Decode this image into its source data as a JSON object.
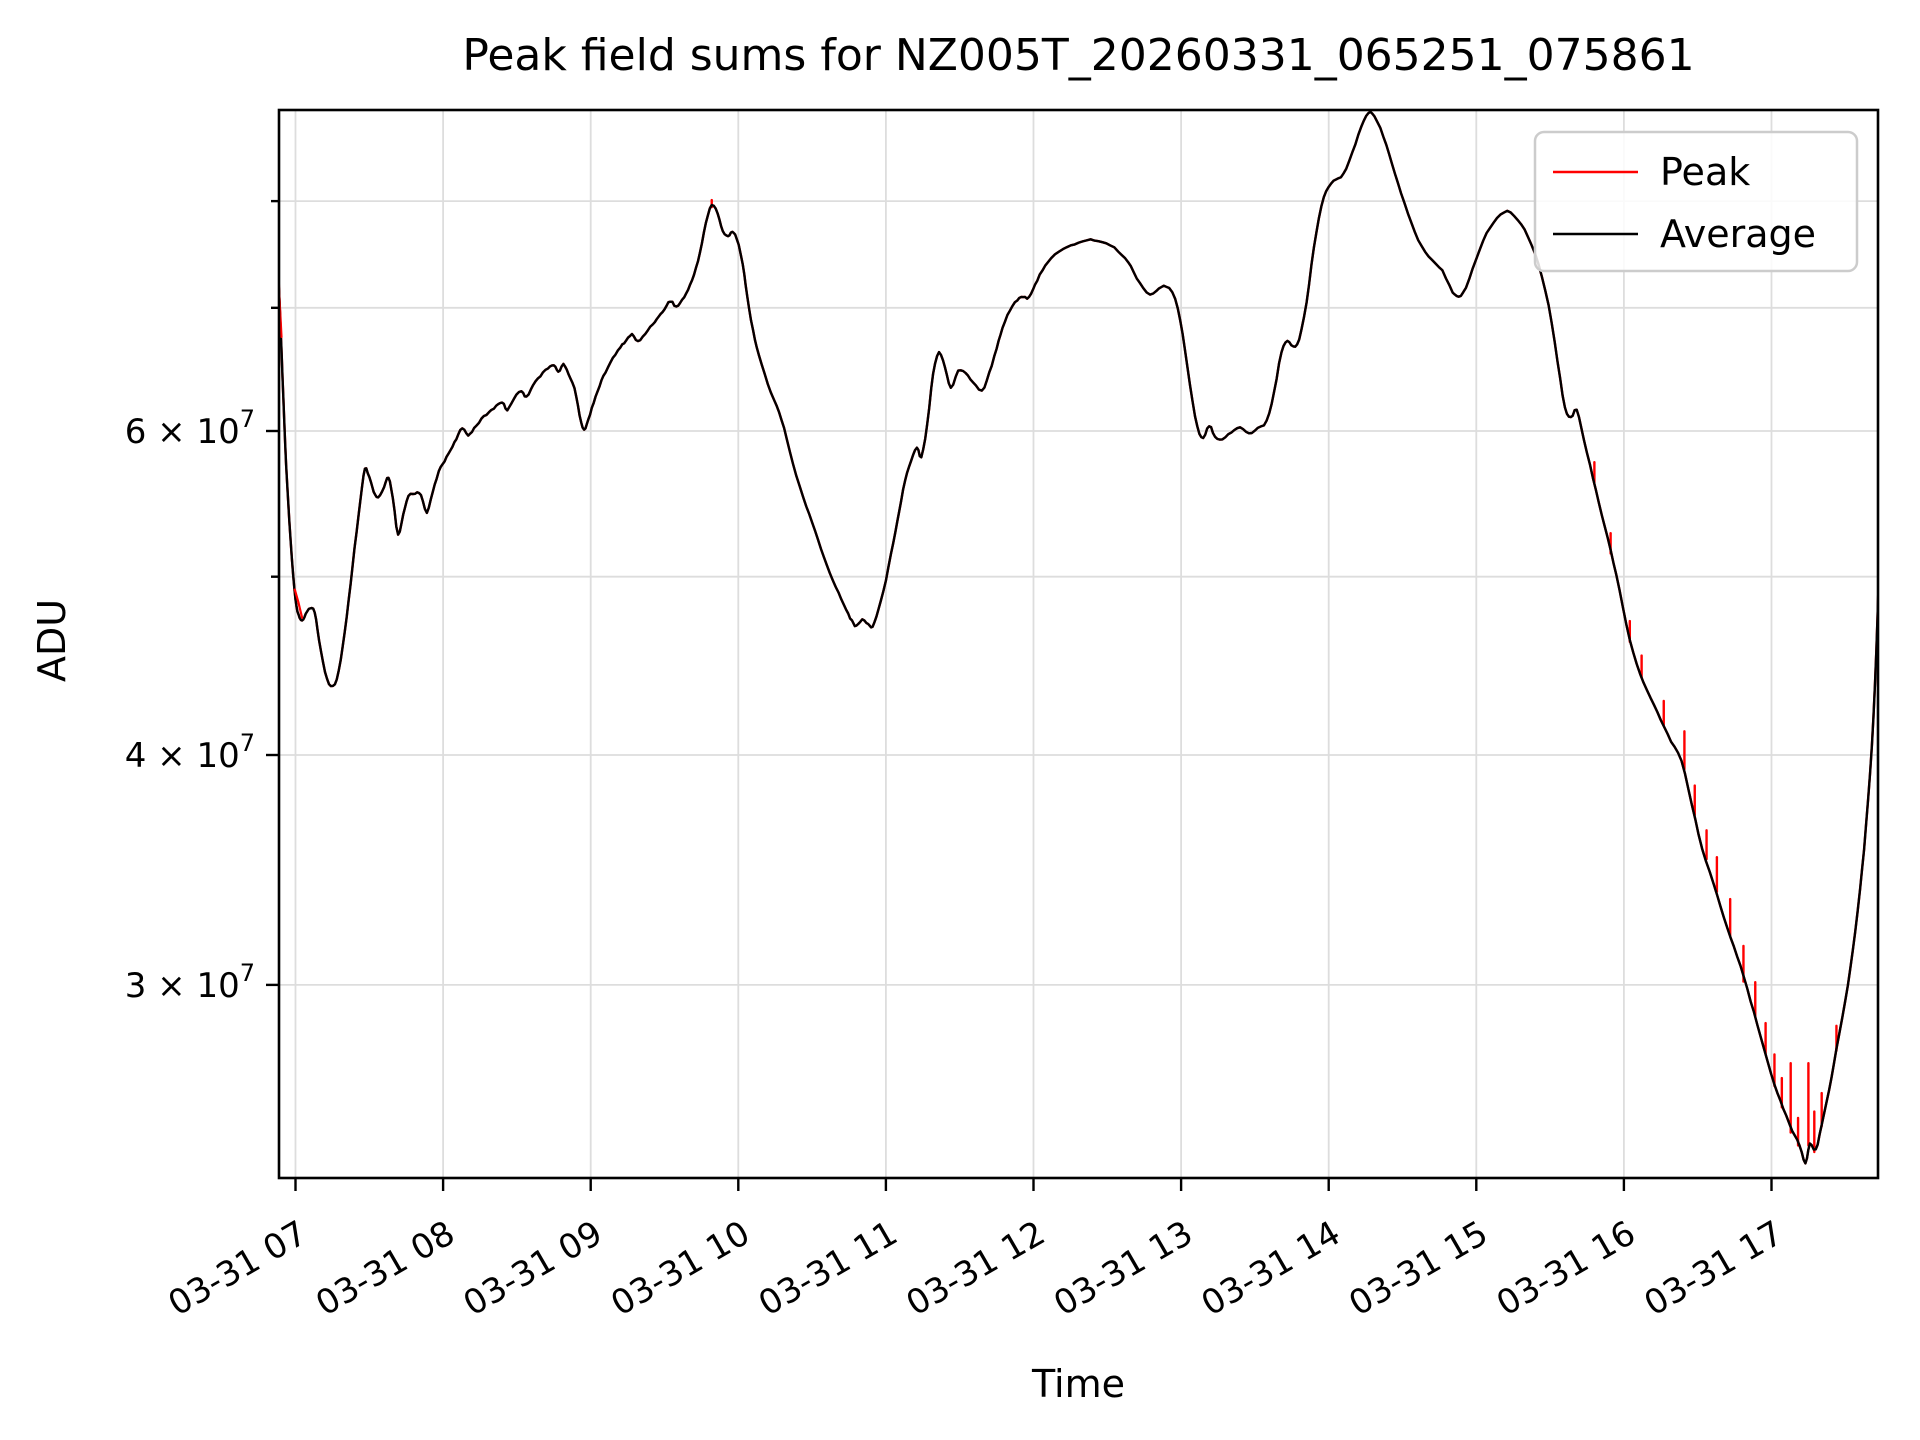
{
  "chart_data": {
    "type": "line",
    "title": "Peak field sums for NZ005T_20260331_065251_075861",
    "xlabel": "Time",
    "ylabel": "ADU",
    "y_scale": "log",
    "ylim_e7": [
      2.33,
      8.98
    ],
    "xlim_hours": [
      6.878,
      17.76
    ],
    "grid": true,
    "legend_position": "upper right",
    "background_color": "#ffffff",
    "grid_color": "#dddddd",
    "spine_color": "#000000",
    "x_ticks": [
      {
        "hour": 7,
        "label": "03-31 07"
      },
      {
        "hour": 8,
        "label": "03-31 08"
      },
      {
        "hour": 9,
        "label": "03-31 09"
      },
      {
        "hour": 10,
        "label": "03-31 10"
      },
      {
        "hour": 11,
        "label": "03-31 11"
      },
      {
        "hour": 12,
        "label": "03-31 12"
      },
      {
        "hour": 13,
        "label": "03-31 13"
      },
      {
        "hour": 14,
        "label": "03-31 14"
      },
      {
        "hour": 15,
        "label": "03-31 15"
      },
      {
        "hour": 16,
        "label": "03-31 16"
      },
      {
        "hour": 17,
        "label": "03-31 17"
      }
    ],
    "y_ticks_major": [
      {
        "value_e7": 6,
        "base": "6 × 10",
        "exp": "7"
      },
      {
        "value_e7": 4,
        "base": "4 × 10",
        "exp": "7"
      },
      {
        "value_e7": 3,
        "base": "3 × 10",
        "exp": "7"
      }
    ],
    "y_ticks_minor_e7": [
      8,
      7,
      5
    ],
    "series": [
      {
        "name": "Peak",
        "color": "#ff0000"
      },
      {
        "name": "Average",
        "color": "#000000"
      }
    ],
    "average_points_t_v_e7": [
      [
        6.878,
        7.43
      ],
      [
        6.895,
        6.95
      ],
      [
        6.912,
        6.42
      ],
      [
        6.93,
        5.9
      ],
      [
        6.95,
        5.5
      ],
      [
        6.975,
        5.12
      ],
      [
        7.0,
        4.86
      ],
      [
        7.02,
        4.77
      ],
      [
        7.045,
        4.73
      ],
      [
        7.07,
        4.77
      ],
      [
        7.1,
        4.81
      ],
      [
        7.13,
        4.78
      ],
      [
        7.16,
        4.62
      ],
      [
        7.2,
        4.44
      ],
      [
        7.24,
        4.36
      ],
      [
        7.28,
        4.4
      ],
      [
        7.32,
        4.58
      ],
      [
        7.36,
        4.85
      ],
      [
        7.4,
        5.18
      ],
      [
        7.44,
        5.5
      ],
      [
        7.47,
        5.72
      ],
      [
        7.5,
        5.66
      ],
      [
        7.53,
        5.56
      ],
      [
        7.56,
        5.52
      ],
      [
        7.6,
        5.59
      ],
      [
        7.63,
        5.66
      ],
      [
        7.66,
        5.51
      ],
      [
        7.695,
        5.27
      ],
      [
        7.73,
        5.4
      ],
      [
        7.765,
        5.53
      ],
      [
        7.81,
        5.55
      ],
      [
        7.85,
        5.54
      ],
      [
        7.89,
        5.42
      ],
      [
        7.93,
        5.56
      ],
      [
        7.97,
        5.7
      ],
      [
        8.01,
        5.78
      ],
      [
        8.05,
        5.86
      ],
      [
        8.09,
        5.94
      ],
      [
        8.13,
        6.02
      ],
      [
        8.17,
        5.97
      ],
      [
        8.21,
        6.02
      ],
      [
        8.26,
        6.09
      ],
      [
        8.31,
        6.14
      ],
      [
        8.36,
        6.19
      ],
      [
        8.4,
        6.22
      ],
      [
        8.435,
        6.16
      ],
      [
        8.48,
        6.25
      ],
      [
        8.53,
        6.31
      ],
      [
        8.565,
        6.26
      ],
      [
        8.61,
        6.36
      ],
      [
        8.66,
        6.43
      ],
      [
        8.71,
        6.49
      ],
      [
        8.75,
        6.52
      ],
      [
        8.78,
        6.46
      ],
      [
        8.815,
        6.52
      ],
      [
        8.85,
        6.44
      ],
      [
        8.89,
        6.33
      ],
      [
        8.925,
        6.12
      ],
      [
        8.955,
        6.01
      ],
      [
        8.985,
        6.09
      ],
      [
        9.02,
        6.22
      ],
      [
        9.06,
        6.35
      ],
      [
        9.1,
        6.46
      ],
      [
        9.15,
        6.57
      ],
      [
        9.2,
        6.66
      ],
      [
        9.24,
        6.72
      ],
      [
        9.28,
        6.77
      ],
      [
        9.32,
        6.71
      ],
      [
        9.37,
        6.78
      ],
      [
        9.42,
        6.86
      ],
      [
        9.46,
        6.92
      ],
      [
        9.5,
        6.99
      ],
      [
        9.54,
        7.06
      ],
      [
        9.58,
        7.01
      ],
      [
        9.62,
        7.07
      ],
      [
        9.66,
        7.16
      ],
      [
        9.7,
        7.3
      ],
      [
        9.74,
        7.5
      ],
      [
        9.78,
        7.78
      ],
      [
        9.82,
        7.96
      ],
      [
        9.86,
        7.88
      ],
      [
        9.895,
        7.7
      ],
      [
        9.93,
        7.66
      ],
      [
        9.96,
        7.7
      ],
      [
        9.99,
        7.63
      ],
      [
        10.03,
        7.4
      ],
      [
        10.06,
        7.1
      ],
      [
        10.1,
        6.8
      ],
      [
        10.14,
        6.6
      ],
      [
        10.2,
        6.36
      ],
      [
        10.26,
        6.19
      ],
      [
        10.31,
        6.02
      ],
      [
        10.37,
        5.76
      ],
      [
        10.44,
        5.52
      ],
      [
        10.5,
        5.35
      ],
      [
        10.56,
        5.18
      ],
      [
        10.62,
        5.02
      ],
      [
        10.68,
        4.9
      ],
      [
        10.73,
        4.8
      ],
      [
        10.77,
        4.73
      ],
      [
        10.8,
        4.7
      ],
      [
        10.84,
        4.74
      ],
      [
        10.88,
        4.71
      ],
      [
        10.91,
        4.7
      ],
      [
        10.95,
        4.8
      ],
      [
        11.0,
        4.98
      ],
      [
        11.05,
        5.22
      ],
      [
        11.09,
        5.43
      ],
      [
        11.13,
        5.64
      ],
      [
        11.17,
        5.78
      ],
      [
        11.21,
        5.88
      ],
      [
        11.24,
        5.81
      ],
      [
        11.28,
        6.05
      ],
      [
        11.32,
        6.45
      ],
      [
        11.36,
        6.62
      ],
      [
        11.4,
        6.5
      ],
      [
        11.44,
        6.33
      ],
      [
        11.49,
        6.47
      ],
      [
        11.54,
        6.45
      ],
      [
        11.59,
        6.38
      ],
      [
        11.65,
        6.31
      ],
      [
        11.7,
        6.45
      ],
      [
        11.75,
        6.65
      ],
      [
        11.79,
        6.83
      ],
      [
        11.84,
        6.98
      ],
      [
        11.89,
        7.07
      ],
      [
        11.93,
        7.1
      ],
      [
        11.97,
        7.09
      ],
      [
        12.01,
        7.2
      ],
      [
        12.06,
        7.34
      ],
      [
        12.12,
        7.45
      ],
      [
        12.2,
        7.53
      ],
      [
        12.28,
        7.58
      ],
      [
        12.36,
        7.62
      ],
      [
        12.44,
        7.61
      ],
      [
        12.52,
        7.57
      ],
      [
        12.6,
        7.48
      ],
      [
        12.66,
        7.37
      ],
      [
        12.72,
        7.22
      ],
      [
        12.79,
        7.12
      ],
      [
        12.85,
        7.17
      ],
      [
        12.9,
        7.19
      ],
      [
        12.96,
        7.08
      ],
      [
        13.01,
        6.78
      ],
      [
        13.06,
        6.35
      ],
      [
        13.11,
        6.03
      ],
      [
        13.15,
        5.95
      ],
      [
        13.19,
        6.04
      ],
      [
        13.23,
        5.96
      ],
      [
        13.28,
        5.94
      ],
      [
        13.34,
        5.99
      ],
      [
        13.4,
        6.03
      ],
      [
        13.46,
        5.98
      ],
      [
        13.52,
        6.02
      ],
      [
        13.58,
        6.08
      ],
      [
        13.63,
        6.3
      ],
      [
        13.68,
        6.62
      ],
      [
        13.72,
        6.72
      ],
      [
        13.76,
        6.67
      ],
      [
        13.8,
        6.73
      ],
      [
        13.85,
        7.05
      ],
      [
        13.9,
        7.55
      ],
      [
        13.95,
        7.95
      ],
      [
        14.0,
        8.15
      ],
      [
        14.05,
        8.22
      ],
      [
        14.1,
        8.28
      ],
      [
        14.16,
        8.5
      ],
      [
        14.22,
        8.78
      ],
      [
        14.27,
        8.93
      ],
      [
        14.31,
        8.9
      ],
      [
        14.37,
        8.68
      ],
      [
        14.43,
        8.38
      ],
      [
        14.49,
        8.08
      ],
      [
        14.56,
        7.78
      ],
      [
        14.63,
        7.56
      ],
      [
        14.7,
        7.43
      ],
      [
        14.77,
        7.33
      ],
      [
        14.84,
        7.14
      ],
      [
        14.88,
        7.1
      ],
      [
        14.93,
        7.18
      ],
      [
        15.0,
        7.44
      ],
      [
        15.07,
        7.68
      ],
      [
        15.14,
        7.83
      ],
      [
        15.21,
        7.9
      ],
      [
        15.28,
        7.82
      ],
      [
        15.35,
        7.65
      ],
      [
        15.42,
        7.4
      ],
      [
        15.49,
        7.02
      ],
      [
        15.55,
        6.55
      ],
      [
        15.6,
        6.18
      ],
      [
        15.64,
        6.1
      ],
      [
        15.68,
        6.16
      ],
      [
        15.73,
        5.93
      ],
      [
        15.79,
        5.66
      ],
      [
        15.85,
        5.4
      ],
      [
        15.91,
        5.17
      ],
      [
        15.97,
        4.92
      ],
      [
        16.04,
        4.62
      ],
      [
        16.11,
        4.43
      ],
      [
        16.18,
        4.3
      ],
      [
        16.25,
        4.18
      ],
      [
        16.32,
        4.07
      ],
      [
        16.39,
        3.97
      ],
      [
        16.46,
        3.76
      ],
      [
        16.53,
        3.56
      ],
      [
        16.61,
        3.4
      ],
      [
        16.7,
        3.22
      ],
      [
        16.79,
        3.07
      ],
      [
        16.88,
        2.9
      ],
      [
        16.95,
        2.77
      ],
      [
        17.02,
        2.65
      ],
      [
        17.08,
        2.57
      ],
      [
        17.14,
        2.5
      ],
      [
        17.19,
        2.455
      ],
      [
        17.23,
        2.4
      ],
      [
        17.26,
        2.46
      ],
      [
        17.3,
        2.44
      ],
      [
        17.34,
        2.52
      ],
      [
        17.39,
        2.63
      ],
      [
        17.44,
        2.77
      ],
      [
        17.5,
        2.94
      ],
      [
        17.55,
        3.13
      ],
      [
        17.6,
        3.38
      ],
      [
        17.64,
        3.66
      ],
      [
        17.68,
        4.05
      ],
      [
        17.71,
        4.55
      ],
      [
        17.735,
        5.3
      ],
      [
        17.755,
        6.4
      ],
      [
        17.76,
        6.85
      ]
    ],
    "peak_spikes_t_base_top_e7": [
      [
        9.82,
        7.96,
        8.01
      ],
      [
        15.8,
        5.64,
        5.77
      ],
      [
        15.91,
        5.16,
        5.28
      ],
      [
        16.04,
        4.62,
        4.73
      ],
      [
        16.12,
        4.42,
        4.53
      ],
      [
        16.27,
        4.16,
        4.28
      ],
      [
        16.41,
        3.94,
        4.12
      ],
      [
        16.48,
        3.72,
        3.85
      ],
      [
        16.56,
        3.52,
        3.64
      ],
      [
        16.63,
        3.38,
        3.52
      ],
      [
        16.72,
        3.2,
        3.34
      ],
      [
        16.81,
        3.02,
        3.15
      ],
      [
        16.89,
        2.89,
        3.01
      ],
      [
        16.96,
        2.76,
        2.86
      ],
      [
        17.02,
        2.65,
        2.75
      ],
      [
        17.07,
        2.58,
        2.67
      ],
      [
        17.13,
        2.5,
        2.72
      ],
      [
        17.18,
        2.46,
        2.54
      ],
      [
        17.25,
        2.46,
        2.72
      ],
      [
        17.29,
        2.44,
        2.56
      ],
      [
        17.34,
        2.52,
        2.62
      ],
      [
        17.44,
        2.77,
        2.85
      ]
    ],
    "peak_start_fringe_t_v_e7": [
      [
        6.878,
        7.56
      ],
      [
        6.89,
        7.12
      ],
      [
        6.905,
        6.75
      ]
    ],
    "peak_dip_fringe_t_v_e7": [
      [
        6.995,
        4.92
      ],
      [
        7.02,
        4.84
      ],
      [
        7.045,
        4.75
      ]
    ],
    "peak_end_fringe_t_v_e7": [
      [
        17.748,
        6.2
      ],
      [
        17.76,
        7.02
      ]
    ]
  }
}
